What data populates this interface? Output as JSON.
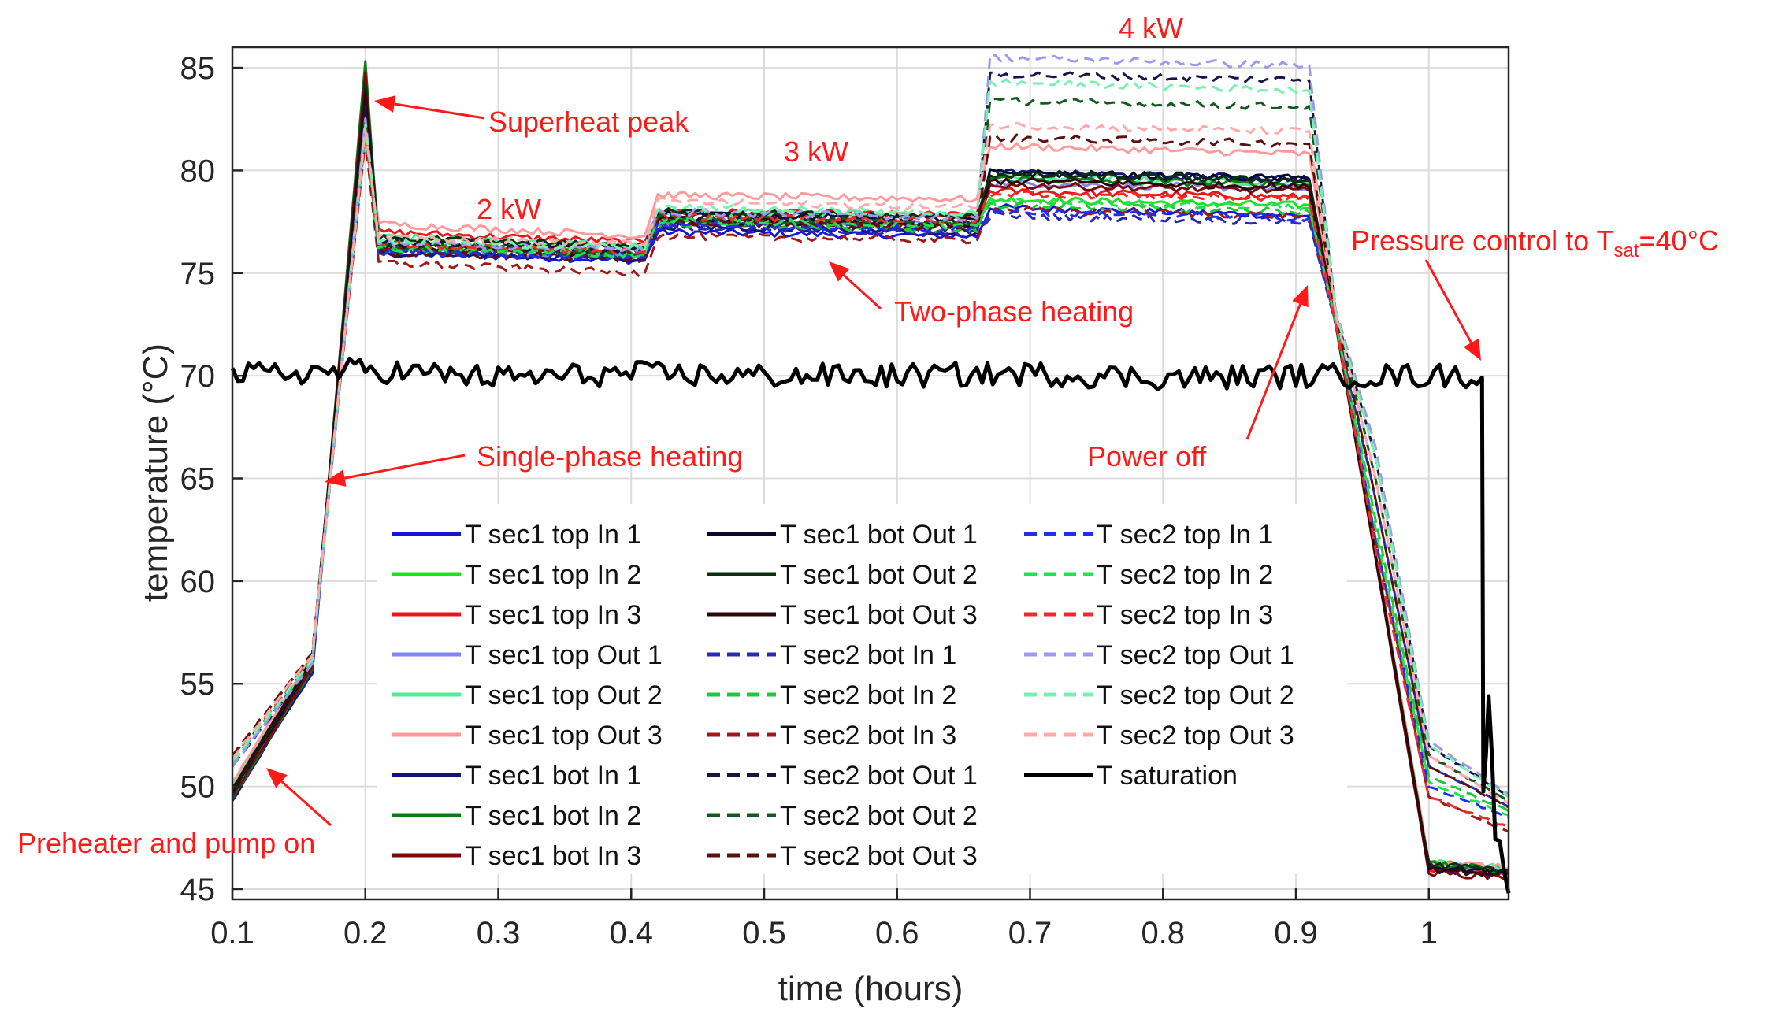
{
  "chart_data": {
    "type": "line",
    "title": "",
    "xlabel": "time (hours)",
    "ylabel": "temperature (°C)",
    "xlim": [
      0.1,
      1.06
    ],
    "ylim": [
      44.5,
      86
    ],
    "grid": true,
    "legend_position": "bottom-center, 3 columns",
    "xticks": [
      "0.1",
      "0.2",
      "0.3",
      "0.4",
      "0.5",
      "0.6",
      "0.7",
      "0.8",
      "0.9",
      "1"
    ],
    "yticks": [
      "45",
      "50",
      "55",
      "60",
      "65",
      "70",
      "75",
      "80",
      "85"
    ],
    "annotations": [
      {
        "id": "superheat",
        "text": "Superheat peak",
        "target": [
          0.2,
          83
        ]
      },
      {
        "id": "kw2",
        "text": "2 kW",
        "target": null
      },
      {
        "id": "kw3",
        "text": "3 kW",
        "target": null
      },
      {
        "id": "kw4",
        "text": "4 kW",
        "target": null
      },
      {
        "id": "twophase",
        "text": "Two-phase heating",
        "target": [
          0.56,
          77
        ]
      },
      {
        "id": "singlephase",
        "text": "Single-phase heating",
        "target": [
          0.17,
          65
        ]
      },
      {
        "id": "preheater",
        "text": "Preheater and pump on",
        "target": [
          0.12,
          51
        ]
      },
      {
        "id": "poweroff",
        "text": "Power off",
        "target": [
          0.91,
          75
        ]
      },
      {
        "id": "pressure",
        "text": "Pressure control to T",
        "sub": "sat",
        "suffix": "=40°C",
        "target": [
          1.04,
          70.5
        ]
      }
    ],
    "series": [
      {
        "name": "T sec1 top In 1",
        "color": "#1515d8",
        "dash": "solid",
        "x": [
          0.1,
          0.16,
          0.2,
          0.21,
          0.41,
          0.42,
          0.66,
          0.67,
          0.91,
          0.93,
          1.0,
          1.06
        ],
        "y": [
          49.5,
          55.5,
          84.0,
          76.0,
          75.6,
          77.0,
          76.8,
          78.2,
          77.8,
          72.5,
          46.2,
          45.8
        ]
      },
      {
        "name": "T sec1 top In 2",
        "color": "#1ee01e",
        "dash": "solid",
        "x": [
          0.1,
          0.16,
          0.2,
          0.21,
          0.41,
          0.42,
          0.66,
          0.67,
          0.91,
          0.93,
          1.0,
          1.06
        ],
        "y": [
          49.6,
          55.8,
          84.5,
          76.5,
          76.0,
          77.5,
          77.2,
          78.6,
          78.3,
          72.5,
          46.3,
          45.9
        ]
      },
      {
        "name": "T sec1 top In 3",
        "color": "#e81818",
        "dash": "solid",
        "x": [
          0.1,
          0.16,
          0.2,
          0.21,
          0.41,
          0.42,
          0.66,
          0.67,
          0.91,
          0.93,
          1.0,
          1.06
        ],
        "y": [
          49.8,
          56.0,
          84.0,
          77.0,
          76.5,
          78.0,
          77.8,
          79.0,
          78.7,
          72.5,
          46.0,
          45.8
        ]
      },
      {
        "name": "T sec1 top Out 1",
        "color": "#7f86f0",
        "dash": "solid",
        "x": [
          0.1,
          0.16,
          0.2,
          0.21,
          0.41,
          0.42,
          0.66,
          0.67,
          0.91,
          0.93,
          1.0,
          1.06
        ],
        "y": [
          49.9,
          56.1,
          83.5,
          76.2,
          75.8,
          77.6,
          77.4,
          79.4,
          79.1,
          72.8,
          46.2,
          45.9
        ]
      },
      {
        "name": "T sec1 top Out 2",
        "color": "#58e89a",
        "dash": "solid",
        "x": [
          0.1,
          0.16,
          0.2,
          0.21,
          0.41,
          0.42,
          0.66,
          0.67,
          0.91,
          0.93,
          1.0,
          1.06
        ],
        "y": [
          50.0,
          56.2,
          83.5,
          76.8,
          76.3,
          78.0,
          77.8,
          79.7,
          79.4,
          72.8,
          46.3,
          46.0
        ]
      },
      {
        "name": "T sec1 top Out 3",
        "color": "#ff9a9a",
        "dash": "solid",
        "x": [
          0.1,
          0.16,
          0.2,
          0.21,
          0.41,
          0.42,
          0.66,
          0.67,
          0.91,
          0.93,
          1.0,
          1.06
        ],
        "y": [
          50.2,
          56.4,
          83.0,
          77.4,
          76.8,
          78.8,
          78.6,
          81.2,
          80.8,
          72.8,
          46.4,
          46.0
        ]
      },
      {
        "name": "T sec1 bot In 1",
        "color": "#14147a",
        "dash": "solid",
        "x": [
          0.1,
          0.16,
          0.2,
          0.21,
          0.41,
          0.42,
          0.66,
          0.67,
          0.91,
          0.93,
          1.0,
          1.06
        ],
        "y": [
          49.3,
          55.6,
          85.0,
          76.0,
          75.7,
          77.3,
          77.0,
          79.9,
          79.6,
          72.5,
          46.0,
          45.7
        ]
      },
      {
        "name": "T sec1 bot In 2",
        "color": "#0f7a18",
        "dash": "solid",
        "x": [
          0.1,
          0.16,
          0.2,
          0.21,
          0.41,
          0.42,
          0.66,
          0.67,
          0.91,
          0.93,
          1.0,
          1.06
        ],
        "y": [
          49.4,
          55.7,
          85.3,
          76.4,
          76.0,
          77.6,
          77.3,
          79.6,
          79.3,
          72.5,
          46.2,
          45.9
        ]
      },
      {
        "name": "T sec1 bot In 3",
        "color": "#7a0a0a",
        "dash": "solid",
        "x": [
          0.1,
          0.16,
          0.2,
          0.21,
          0.41,
          0.42,
          0.66,
          0.67,
          0.91,
          0.93,
          1.0,
          1.06
        ],
        "y": [
          49.5,
          55.8,
          84.8,
          76.2,
          75.9,
          77.5,
          77.2,
          79.3,
          79.0,
          72.5,
          45.8,
          45.6
        ]
      },
      {
        "name": "T sec1 bot Out 1",
        "color": "#0a0a2e",
        "dash": "solid",
        "x": [
          0.1,
          0.16,
          0.2,
          0.21,
          0.41,
          0.42,
          0.66,
          0.67,
          0.91,
          0.93,
          1.0,
          1.06
        ],
        "y": [
          49.7,
          56.0,
          84.0,
          76.6,
          76.2,
          77.9,
          77.6,
          79.9,
          79.6,
          72.6,
          46.1,
          45.8
        ]
      },
      {
        "name": "T sec1 bot Out 2",
        "color": "#0a3010",
        "dash": "solid",
        "x": [
          0.1,
          0.16,
          0.2,
          0.21,
          0.41,
          0.42,
          0.66,
          0.67,
          0.91,
          0.93,
          1.0,
          1.06
        ],
        "y": [
          49.8,
          56.1,
          84.2,
          76.7,
          76.3,
          78.0,
          77.7,
          79.8,
          79.5,
          72.6,
          46.2,
          45.9
        ]
      },
      {
        "name": "T sec1 bot Out 3",
        "color": "#2e0808",
        "dash": "solid",
        "x": [
          0.1,
          0.16,
          0.2,
          0.21,
          0.41,
          0.42,
          0.66,
          0.67,
          0.91,
          0.93,
          1.0,
          1.06
        ],
        "y": [
          49.9,
          56.2,
          83.8,
          76.3,
          75.9,
          77.6,
          77.3,
          79.5,
          79.2,
          72.6,
          46.0,
          45.7
        ]
      },
      {
        "name": "T sec2 bot In 1",
        "color": "#2a2ab0",
        "dash": "dash",
        "x": [
          0.1,
          0.16,
          0.2,
          0.21,
          0.41,
          0.42,
          0.66,
          0.67,
          0.91,
          0.93,
          0.96,
          1.0,
          1.06
        ],
        "y": [
          51.0,
          56.0,
          82.5,
          76.0,
          75.8,
          77.2,
          76.9,
          77.8,
          77.5,
          72.5,
          64.0,
          51.0,
          49.0
        ]
      },
      {
        "name": "T sec2 bot In 2",
        "color": "#1ec83a",
        "dash": "dash",
        "x": [
          0.1,
          0.16,
          0.2,
          0.21,
          0.41,
          0.42,
          0.66,
          0.67,
          0.91,
          0.93,
          0.96,
          1.0,
          1.06
        ],
        "y": [
          51.2,
          56.2,
          82.0,
          76.2,
          75.9,
          77.4,
          77.1,
          78.3,
          78.0,
          72.5,
          63.0,
          50.5,
          48.8
        ]
      },
      {
        "name": "T sec2 bot In 3",
        "color": "#a01818",
        "dash": "dash",
        "x": [
          0.1,
          0.16,
          0.2,
          0.21,
          0.41,
          0.42,
          0.66,
          0.67,
          0.91,
          0.93,
          0.96,
          1.0,
          1.06
        ],
        "y": [
          51.5,
          56.5,
          81.5,
          75.5,
          75.0,
          76.8,
          76.6,
          78.1,
          77.8,
          72.5,
          62.0,
          49.5,
          47.8
        ]
      },
      {
        "name": "T sec2 bot Out 1",
        "color": "#15154a",
        "dash": "dash",
        "x": [
          0.1,
          0.16,
          0.2,
          0.21,
          0.41,
          0.42,
          0.66,
          0.67,
          0.91,
          0.93,
          0.96,
          1.0,
          1.06
        ],
        "y": [
          51.0,
          56.0,
          83.0,
          76.4,
          76.0,
          77.8,
          77.5,
          84.7,
          84.4,
          73.0,
          66.0,
          52.0,
          49.5
        ]
      },
      {
        "name": "T sec2 bot Out 2",
        "color": "#145a20",
        "dash": "dash",
        "x": [
          0.1,
          0.16,
          0.2,
          0.21,
          0.41,
          0.42,
          0.66,
          0.67,
          0.91,
          0.93,
          0.96,
          1.0,
          1.06
        ],
        "y": [
          51.2,
          56.2,
          82.5,
          76.3,
          75.9,
          77.7,
          77.4,
          83.4,
          83.1,
          73.0,
          65.0,
          51.5,
          49.3
        ]
      },
      {
        "name": "T sec2 bot Out 3",
        "color": "#5a1010",
        "dash": "dash",
        "x": [
          0.1,
          0.16,
          0.2,
          0.21,
          0.41,
          0.42,
          0.66,
          0.67,
          0.91,
          0.93,
          0.96,
          1.0,
          1.06
        ],
        "y": [
          51.5,
          56.5,
          82.0,
          76.0,
          75.7,
          77.5,
          77.2,
          81.6,
          81.3,
          73.0,
          64.0,
          51.0,
          49.0
        ]
      },
      {
        "name": "T sec2 top In 1",
        "color": "#2030e8",
        "dash": "dash",
        "x": [
          0.1,
          0.16,
          0.2,
          0.21,
          0.41,
          0.42,
          0.66,
          0.67,
          0.91,
          0.93,
          0.96,
          1.0,
          1.06
        ],
        "y": [
          51.0,
          56.0,
          82.0,
          76.0,
          75.8,
          77.4,
          77.1,
          78.0,
          77.7,
          72.6,
          62.0,
          50.0,
          48.5
        ]
      },
      {
        "name": "T sec2 top In 2",
        "color": "#22e050",
        "dash": "dash",
        "x": [
          0.1,
          0.16,
          0.2,
          0.21,
          0.41,
          0.42,
          0.66,
          0.67,
          0.91,
          0.93,
          0.96,
          1.0,
          1.06
        ],
        "y": [
          51.1,
          56.1,
          82.0,
          76.2,
          75.9,
          77.6,
          77.3,
          78.5,
          78.2,
          72.6,
          62.5,
          50.2,
          48.6
        ]
      },
      {
        "name": "T sec2 top In 3",
        "color": "#f02a2a",
        "dash": "dash",
        "x": [
          0.1,
          0.16,
          0.2,
          0.21,
          0.41,
          0.42,
          0.66,
          0.67,
          0.91,
          0.93,
          0.96,
          1.0,
          1.06
        ],
        "y": [
          51.3,
          56.3,
          81.8,
          76.4,
          76.0,
          77.8,
          77.5,
          78.9,
          78.6,
          72.6,
          61.5,
          49.5,
          48.0
        ]
      },
      {
        "name": "T sec2 top Out 1",
        "color": "#9a9af0",
        "dash": "dash",
        "x": [
          0.1,
          0.16,
          0.2,
          0.21,
          0.41,
          0.42,
          0.66,
          0.67,
          0.91,
          0.93,
          0.96,
          1.0,
          1.06
        ],
        "y": [
          51.0,
          56.0,
          82.5,
          76.5,
          76.1,
          78.0,
          77.7,
          85.5,
          85.1,
          73.2,
          66.5,
          52.2,
          49.6
        ]
      },
      {
        "name": "T sec2 top Out 2",
        "color": "#7af0b0",
        "dash": "dash",
        "x": [
          0.1,
          0.16,
          0.2,
          0.21,
          0.41,
          0.42,
          0.66,
          0.67,
          0.91,
          0.93,
          0.96,
          1.0,
          1.06
        ],
        "y": [
          51.2,
          56.2,
          82.2,
          76.6,
          76.2,
          78.2,
          77.9,
          84.3,
          83.9,
          73.1,
          66.0,
          52.0,
          49.5
        ]
      },
      {
        "name": "T sec2 top Out 3",
        "color": "#ffaaaa",
        "dash": "dash",
        "x": [
          0.1,
          0.16,
          0.2,
          0.21,
          0.41,
          0.42,
          0.66,
          0.67,
          0.91,
          0.93,
          0.96,
          1.0,
          1.06
        ],
        "y": [
          51.4,
          56.4,
          82.0,
          76.8,
          76.4,
          78.5,
          78.2,
          82.2,
          81.9,
          73.0,
          65.0,
          51.5,
          49.2
        ]
      },
      {
        "name": "T saturation",
        "color": "#000000",
        "dash": "solid",
        "thick": true,
        "x": [
          0.1,
          0.2,
          0.3,
          0.4,
          0.5,
          0.6,
          0.7,
          0.8,
          0.9,
          1.0,
          1.04,
          1.041,
          1.045,
          1.05,
          1.06
        ],
        "y": [
          70.0,
          70.3,
          69.9,
          70.1,
          70.0,
          70.0,
          70.1,
          69.9,
          70.0,
          70.0,
          70.0,
          50.0,
          54.0,
          48.0,
          44.8
        ]
      }
    ]
  }
}
